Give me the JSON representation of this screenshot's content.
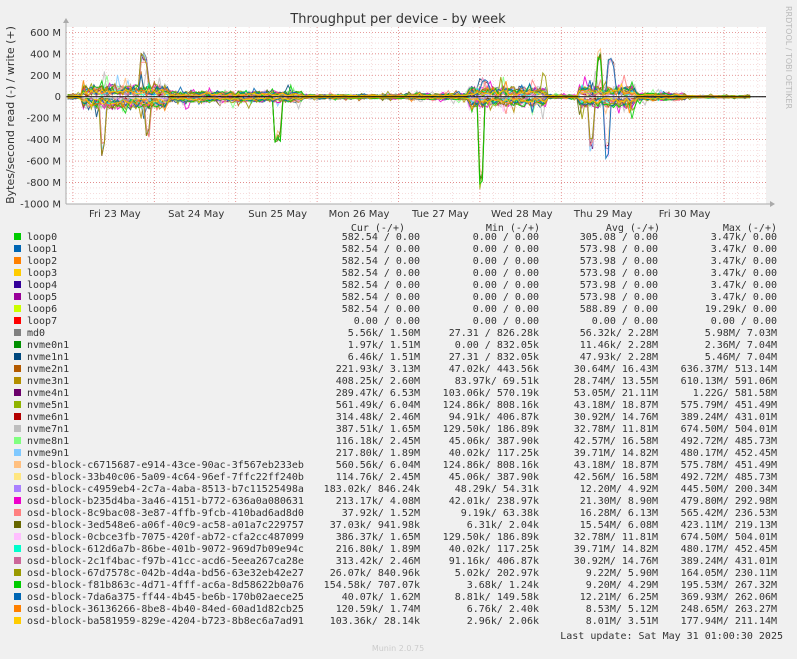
{
  "chart_data": {
    "type": "line",
    "title": "Throughput per device - by week",
    "ylabel": "Bytes/second read (-) / write (+)",
    "side_label": "RRDTOOL / TOBI OETIKER",
    "ylim": [
      -1000000000,
      650000000
    ],
    "y_ticks": [
      "600 M",
      "400 M",
      "200 M",
      "0",
      "-200 M",
      "-400 M",
      "-600 M",
      "-800 M",
      "-1000 M"
    ],
    "y_tick_values": [
      600,
      400,
      200,
      0,
      -200,
      -400,
      -600,
      -800,
      -1000
    ],
    "x_ticks": [
      "Fri 23 May",
      "Sat 24 May",
      "Sun 25 May",
      "Mon 26 May",
      "Tue 27 May",
      "Wed 28 May",
      "Thu 29 May",
      "Fri 30 May"
    ],
    "x_range_days": [
      0,
      8.6
    ],
    "grid": true,
    "legend_headers": {
      "cur": "Cur (-/+)",
      "min": "Min (-/+)",
      "avg": "Avg (-/+)",
      "max": "Max (-/+)"
    },
    "series": [
      {
        "name": "loop0",
        "color": "#00cc00",
        "cur": "582.54 /    0.00",
        "min": "0.00 /    0.00",
        "avg": "305.08 /    0.00",
        "max": "3.47k/    0.00"
      },
      {
        "name": "loop1",
        "color": "#0066b3",
        "cur": "582.54 /    0.00",
        "min": "0.00 /    0.00",
        "avg": "573.98 /    0.00",
        "max": "3.47k/    0.00"
      },
      {
        "name": "loop2",
        "color": "#ff8000",
        "cur": "582.54 /    0.00",
        "min": "0.00 /    0.00",
        "avg": "573.98 /    0.00",
        "max": "3.47k/    0.00"
      },
      {
        "name": "loop3",
        "color": "#ffcc00",
        "cur": "582.54 /    0.00",
        "min": "0.00 /    0.00",
        "avg": "573.98 /    0.00",
        "max": "3.47k/    0.00"
      },
      {
        "name": "loop4",
        "color": "#330099",
        "cur": "582.54 /    0.00",
        "min": "0.00 /    0.00",
        "avg": "573.98 /    0.00",
        "max": "3.47k/    0.00"
      },
      {
        "name": "loop5",
        "color": "#990099",
        "cur": "582.54 /    0.00",
        "min": "0.00 /    0.00",
        "avg": "573.98 /    0.00",
        "max": "3.47k/    0.00"
      },
      {
        "name": "loop6",
        "color": "#ccff00",
        "cur": "582.54 /    0.00",
        "min": "0.00 /    0.00",
        "avg": "588.89 /    0.00",
        "max": "19.29k/    0.00"
      },
      {
        "name": "loop7",
        "color": "#ff0000",
        "cur": "0.00 /    0.00",
        "min": "0.00 /    0.00",
        "avg": "0.00 /    0.00",
        "max": "0.00 /    0.00"
      },
      {
        "name": "md0",
        "color": "#808080",
        "cur": "5.56k/   1.50M",
        "min": "27.31 / 826.28k",
        "avg": "56.32k/   2.28M",
        "max": "5.98M/   7.03M"
      },
      {
        "name": "nvme0n1",
        "color": "#008f00",
        "cur": "1.97k/   1.51M",
        "min": "0.00 / 832.05k",
        "avg": "11.46k/   2.28M",
        "max": "2.36M/   7.04M"
      },
      {
        "name": "nvme1n1",
        "color": "#00487d",
        "cur": "6.46k/   1.51M",
        "min": "27.31 / 832.05k",
        "avg": "47.93k/   2.28M",
        "max": "5.46M/   7.04M"
      },
      {
        "name": "nvme2n1",
        "color": "#b35a00",
        "cur": "221.93k/   3.13M",
        "min": "47.02k/ 443.56k",
        "avg": "30.64M/  16.43M",
        "max": "636.37M/ 513.14M"
      },
      {
        "name": "nvme3n1",
        "color": "#b38f00",
        "cur": "408.25k/   2.60M",
        "min": "83.97k/  69.51k",
        "avg": "28.74M/  13.55M",
        "max": "610.13M/ 591.06M"
      },
      {
        "name": "nvme4n1",
        "color": "#6b006b",
        "cur": "289.47k/   6.53M",
        "min": "103.06k/ 570.19k",
        "avg": "53.05M/  21.11M",
        "max": "1.22G/ 581.58M"
      },
      {
        "name": "nvme5n1",
        "color": "#8fb300",
        "cur": "561.49k/   6.04M",
        "min": "124.86k/ 808.16k",
        "avg": "43.18M/  18.87M",
        "max": "575.79M/ 451.49M"
      },
      {
        "name": "nvme6n1",
        "color": "#b30000",
        "cur": "314.48k/   2.46M",
        "min": "94.91k/ 406.87k",
        "avg": "30.92M/  14.76M",
        "max": "389.24M/ 431.01M"
      },
      {
        "name": "nvme7n1",
        "color": "#bebebe",
        "cur": "387.51k/   1.65M",
        "min": "129.50k/ 186.89k",
        "avg": "32.78M/  11.81M",
        "max": "674.50M/ 504.01M"
      },
      {
        "name": "nvme8n1",
        "color": "#80ff80",
        "cur": "116.18k/   2.45M",
        "min": "45.06k/ 387.90k",
        "avg": "42.57M/  16.58M",
        "max": "492.72M/ 485.73M"
      },
      {
        "name": "nvme9n1",
        "color": "#80c9ff",
        "cur": "217.80k/   1.89M",
        "min": "40.02k/ 117.25k",
        "avg": "39.71M/  14.82M",
        "max": "480.17M/ 452.45M"
      },
      {
        "name": "osd-block-c6715687-e914-43ce-90ac-3f567eb233eb",
        "color": "#ffc080",
        "cur": "560.56k/   6.04M",
        "min": "124.86k/ 808.16k",
        "avg": "43.18M/  18.87M",
        "max": "575.78M/ 451.49M"
      },
      {
        "name": "osd-block-33b40c06-5a09-4c64-96ef-7ffc22ff240b",
        "color": "#ffe680",
        "cur": "114.76k/   2.45M",
        "min": "45.06k/ 387.90k",
        "avg": "42.56M/  16.58M",
        "max": "492.72M/ 485.73M"
      },
      {
        "name": "osd-block-c4959eb4-2c7a-4aba-8513-b7c11525498a",
        "color": "#aa80ff",
        "cur": "183.02k/ 846.24k",
        "min": "48.29k/  54.31k",
        "avg": "12.20M/   4.92M",
        "max": "445.50M/ 200.34M"
      },
      {
        "name": "osd-block-b235d4ba-3a46-4151-b772-636a0a080631",
        "color": "#ee00cc",
        "cur": "213.17k/   4.08M",
        "min": "42.01k/ 238.97k",
        "avg": "21.30M/   8.90M",
        "max": "479.80M/ 292.98M"
      },
      {
        "name": "osd-block-8c9bac08-3e87-4ffb-9fcb-410bad6ad8d0",
        "color": "#ff8080",
        "cur": "37.92k/   1.52M",
        "min": "9.19k/  63.38k",
        "avg": "16.28M/   6.13M",
        "max": "565.42M/ 236.53M"
      },
      {
        "name": "osd-block-3ed548e6-a06f-40c9-ac58-a01a7c229757",
        "color": "#666600",
        "cur": "37.03k/ 941.98k",
        "min": "6.31k/   2.04k",
        "avg": "15.54M/   6.08M",
        "max": "423.11M/ 219.13M"
      },
      {
        "name": "osd-block-0cbce3fb-7075-420f-ab72-cfa2cc487099",
        "color": "#ffbfff",
        "cur": "386.37k/   1.65M",
        "min": "129.50k/ 186.89k",
        "avg": "32.78M/  11.81M",
        "max": "674.50M/ 504.01M"
      },
      {
        "name": "osd-block-612d6a7b-86be-401b-9072-969d7b09e94c",
        "color": "#00ffcc",
        "cur": "216.80k/   1.89M",
        "min": "40.02k/ 117.25k",
        "avg": "39.71M/  14.82M",
        "max": "480.17M/ 452.45M"
      },
      {
        "name": "osd-block-2c1f4bac-f97b-41cc-acd6-5eea267ca28e",
        "color": "#cc6699",
        "cur": "313.42k/   2.46M",
        "min": "91.16k/ 406.87k",
        "avg": "30.92M/  14.76M",
        "max": "389.24M/ 431.01M"
      },
      {
        "name": "osd-block-67d7578c-042b-4d4a-bd56-63e32eb42e27",
        "color": "#999900",
        "cur": "26.07k/ 840.96k",
        "min": "5.02k/ 202.97k",
        "avg": "9.22M/   5.90M",
        "max": "164.05M/ 230.11M"
      },
      {
        "name": "osd-block-f81b863c-4d71-4fff-ac6a-8d58622b0a76",
        "color": "#00cc00",
        "cur": "154.58k/ 707.07k",
        "min": "3.68k/   1.24k",
        "avg": "9.20M/   4.29M",
        "max": "195.53M/ 267.32M"
      },
      {
        "name": "osd-block-7da6a375-ff44-4b45-be6b-170b02aece25",
        "color": "#0066b3",
        "cur": "40.07k/   1.62M",
        "min": "8.81k/ 149.58k",
        "avg": "12.21M/   6.25M",
        "max": "369.93M/ 262.06M"
      },
      {
        "name": "osd-block-36136266-8be8-4b40-84ed-60ad1d82cb25",
        "color": "#ff8000",
        "cur": "120.59k/   1.74M",
        "min": "6.76k/   2.40k",
        "avg": "8.53M/   5.12M",
        "max": "248.65M/ 263.27M"
      },
      {
        "name": "osd-block-ba581959-829e-4204-b723-8b8ec6a7ad91",
        "color": "#ffcc00",
        "cur": "103.36k/  28.14k",
        "min": "2.96k/   2.06k",
        "avg": "8.01M/   3.51M",
        "max": "177.94M/ 211.14M"
      }
    ],
    "peaks": [
      {
        "day": 0.45,
        "value": -580
      },
      {
        "day": 0.95,
        "value": 420
      },
      {
        "day": 1.0,
        "value": -380
      },
      {
        "day": 2.6,
        "value": -430
      },
      {
        "day": 5.1,
        "value": -900
      },
      {
        "day": 5.15,
        "value": 180
      },
      {
        "day": 6.45,
        "value": -510
      },
      {
        "day": 6.55,
        "value": 450
      },
      {
        "day": 6.65,
        "value": -580
      },
      {
        "day": 6.7,
        "value": 360
      }
    ],
    "last_update": "Last update: Sat May 31 01:00:30 2025",
    "footer": "Munin 2.0.75"
  }
}
